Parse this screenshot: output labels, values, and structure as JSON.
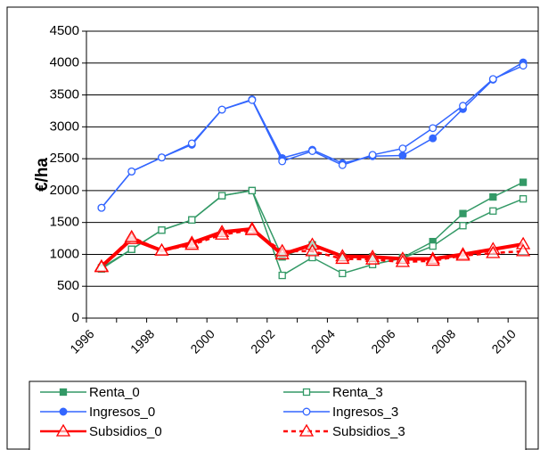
{
  "chart_data": {
    "type": "line",
    "y_label": "€/ha",
    "categories": [
      "1996",
      null,
      "1998",
      null,
      "2000",
      null,
      "2002",
      null,
      "2004",
      null,
      "2006",
      null,
      "2008",
      null,
      "2010"
    ],
    "ylim": [
      0,
      4500
    ],
    "yticks": [
      0,
      500,
      1000,
      1500,
      2000,
      2500,
      3000,
      3500,
      4000,
      4500
    ],
    "grid": true,
    "legend": "bottom",
    "series": [
      {
        "name": "Renta_0",
        "color": "#339966",
        "marker": "square",
        "marker_fill": true,
        "dash": false,
        "line_width": 1.5,
        "values": [
          790,
          1080,
          1380,
          1540,
          1920,
          2000,
          960,
          1150,
          960,
          960,
          950,
          1200,
          1640,
          1900,
          2130
        ]
      },
      {
        "name": "Renta_3",
        "color": "#339966",
        "marker": "square",
        "marker_fill": false,
        "dash": false,
        "line_width": 1.5,
        "values": [
          770,
          1080,
          1380,
          1540,
          1920,
          2000,
          670,
          950,
          700,
          840,
          940,
          1130,
          1450,
          1680,
          1870
        ]
      },
      {
        "name": "Ingresos_0",
        "color": "#3366ff",
        "marker": "circle",
        "marker_fill": true,
        "dash": false,
        "line_width": 1.5,
        "values": [
          1730,
          2300,
          2520,
          2720,
          3270,
          3430,
          2510,
          2640,
          2430,
          2540,
          2550,
          2820,
          3280,
          3740,
          4010
        ]
      },
      {
        "name": "Ingresos_3",
        "color": "#3366ff",
        "marker": "circle",
        "marker_fill": false,
        "dash": false,
        "line_width": 1.5,
        "values": [
          1730,
          2300,
          2520,
          2740,
          3270,
          3420,
          2460,
          2620,
          2400,
          2560,
          2660,
          2980,
          3330,
          3750,
          3960
        ]
      },
      {
        "name": "Subsidios_0",
        "color": "#ff0000",
        "marker": "triangle",
        "marker_fill": false,
        "dash": false,
        "line_width": 4,
        "values": [
          810,
          1240,
          1060,
          1180,
          1350,
          1400,
          1000,
          1150,
          970,
          960,
          930,
          930,
          1000,
          1080,
          1160
        ]
      },
      {
        "name": "Subsidios_3",
        "color": "#ff0000",
        "marker": "triangle",
        "marker_fill": false,
        "dash": true,
        "line_width": 2.5,
        "values": [
          800,
          1270,
          1060,
          1150,
          1310,
          1380,
          1050,
          1050,
          930,
          920,
          880,
          900,
          980,
          1020,
          1050
        ]
      }
    ]
  }
}
